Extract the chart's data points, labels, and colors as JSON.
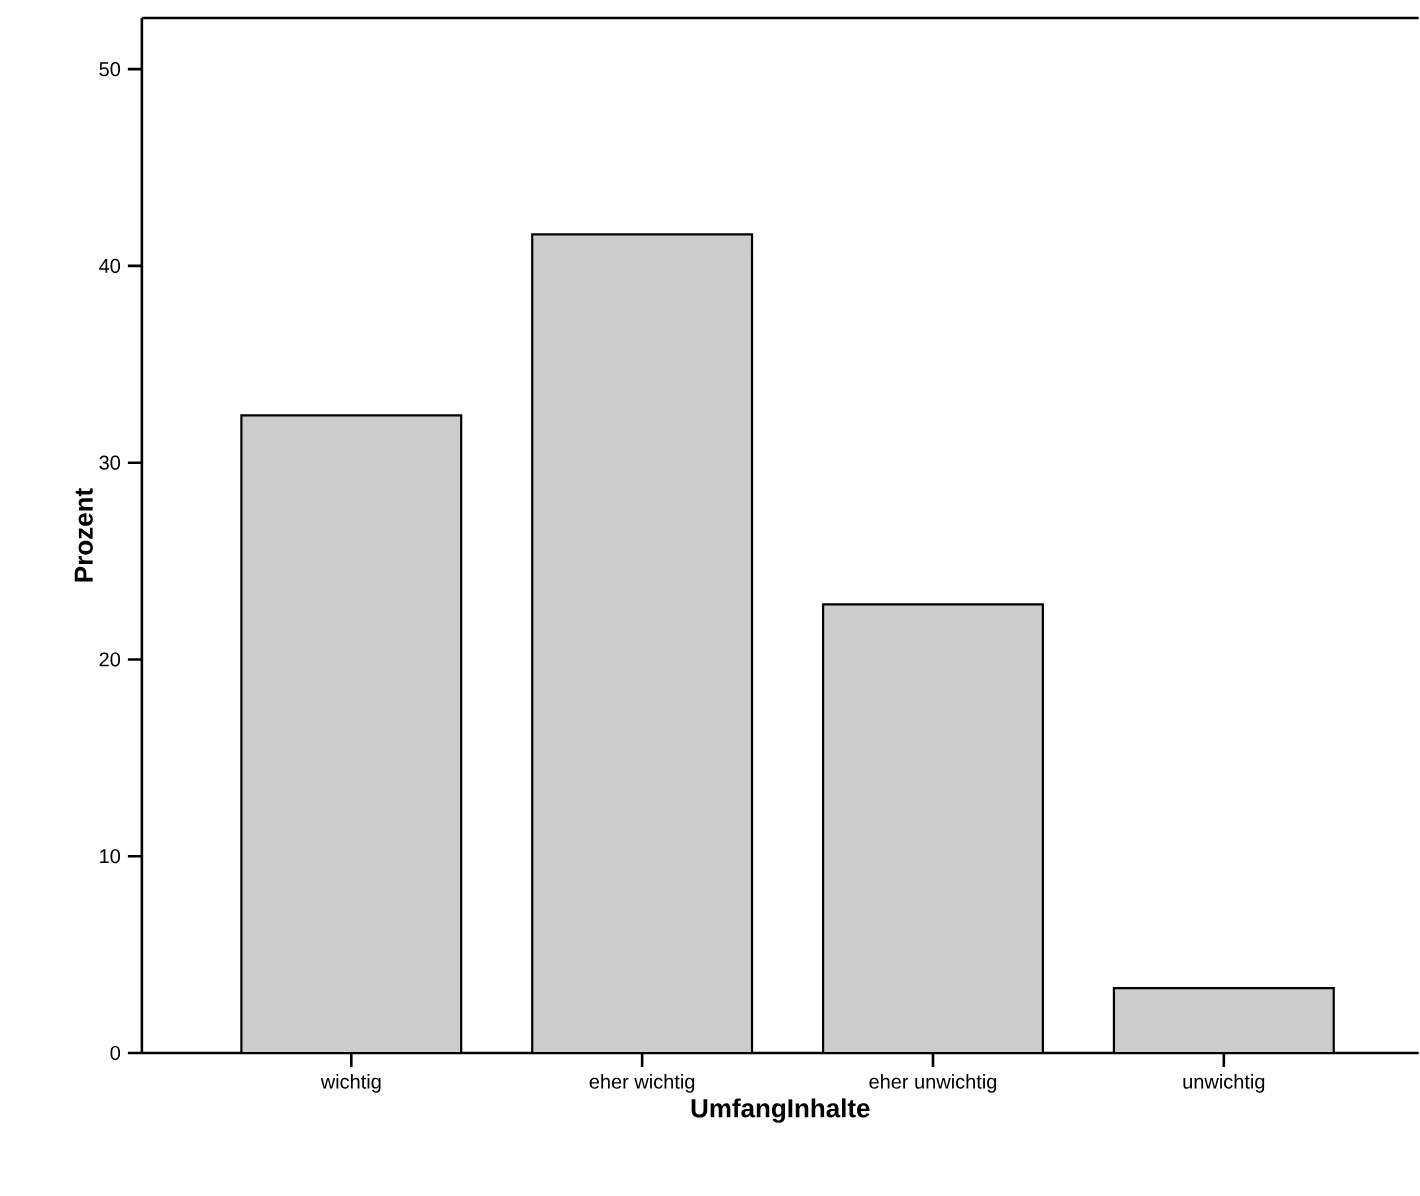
{
  "chart_data": {
    "type": "bar",
    "xlabel": "UmfangInhalte",
    "ylabel": "Prozent",
    "categories": [
      "wichtig",
      "eher wichtig",
      "eher unwichtig",
      "unwichtig"
    ],
    "values": [
      32.4,
      41.6,
      22.8,
      3.3
    ],
    "color": "#cccccc",
    "ylim": [
      0,
      52.6
    ],
    "yticks": [
      0,
      10,
      20,
      30,
      40,
      50
    ],
    "grid": false
  }
}
